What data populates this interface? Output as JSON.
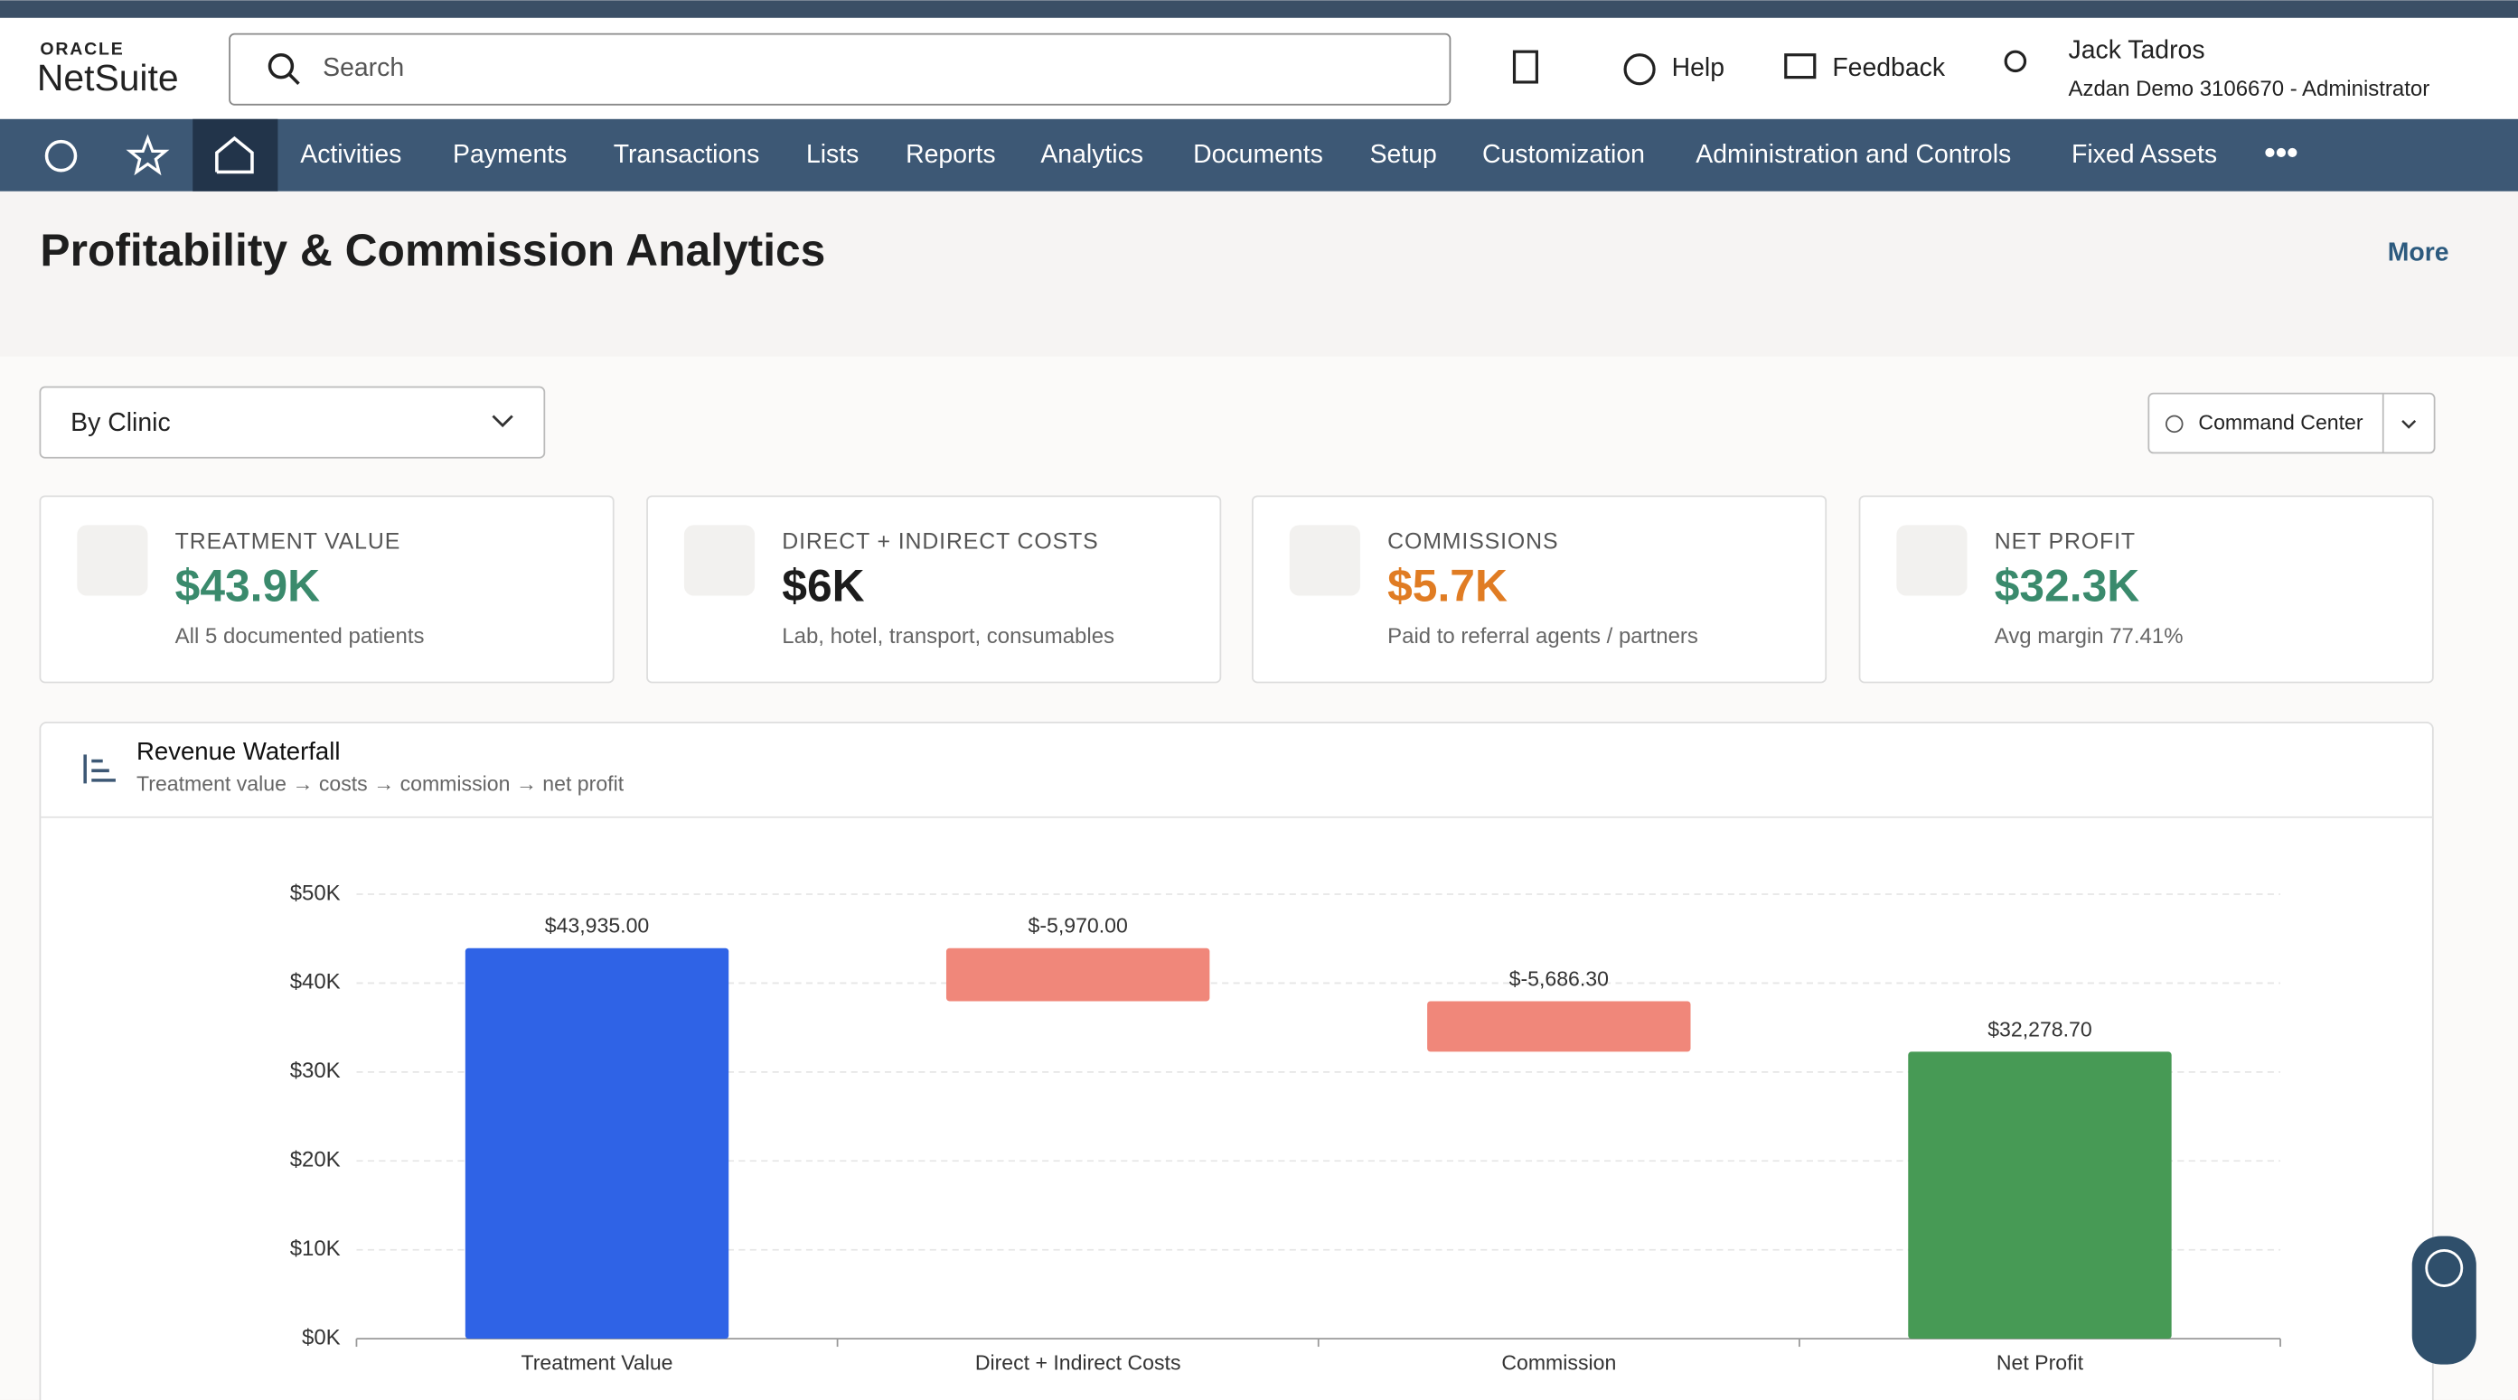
{
  "header": {
    "logo_top": "ORACLE",
    "logo": "NetSuite",
    "search": "Search",
    "help": "Help",
    "feedback": "Feedback",
    "user_name": "Jack Tadros",
    "user_role": "Azdan Demo 3106670 - Administrator"
  },
  "nav": {
    "items": [
      "Activities",
      "Payments",
      "Transactions",
      "Lists",
      "Reports",
      "Analytics",
      "Documents",
      "Setup",
      "Customization",
      "Administration and Controls",
      "Fixed Assets"
    ]
  },
  "page": {
    "title": "Profitability & Commission Analytics",
    "more": "More",
    "filter": "By Clinic",
    "command": "Command Center"
  },
  "kpis": [
    {
      "label": "TREATMENT VALUE",
      "value": "$43.9K",
      "note": "All 5 documented patients",
      "color": "#3a8a6c"
    },
    {
      "label": "DIRECT + INDIRECT COSTS",
      "value": "$6K",
      "note": "Lab, hotel, transport, consumables",
      "color": "#1c1c1c"
    },
    {
      "label": "COMMISSIONS",
      "value": "$5.7K",
      "note": "Paid to referral agents / partners",
      "color": "#e07c23"
    },
    {
      "label": "NET PROFIT",
      "value": "$32.3K",
      "note": "Avg margin 77.41%",
      "color": "#3a8a6c"
    }
  ],
  "chart_data": {
    "type": "waterfall",
    "title": "Revenue Waterfall",
    "subtitle": "Treatment value → costs → commission → net profit",
    "categories": [
      "Treatment Value",
      "Direct + Indirect Costs",
      "Commission",
      "Net Profit"
    ],
    "values": [
      43935,
      -5970,
      -5686.3,
      32278.7
    ],
    "value_labels": [
      "$43,935.00",
      "$-5,970.00",
      "$-5,686.30",
      "$32,278.70"
    ],
    "measure": [
      "absolute",
      "relative",
      "relative",
      "total"
    ],
    "colors": [
      "#2f63e6",
      "#f0877a",
      "#f0877a",
      "#479a55"
    ],
    "ylim": [
      0,
      50000
    ],
    "yticks": [
      {
        "value": 0,
        "label": "$0K"
      },
      {
        "value": 10000,
        "label": "$10K"
      },
      {
        "value": 20000,
        "label": "$20K"
      },
      {
        "value": 30000,
        "label": "$30K"
      },
      {
        "value": 40000,
        "label": "$40K"
      },
      {
        "value": 50000,
        "label": "$50K"
      }
    ],
    "grid": true
  }
}
